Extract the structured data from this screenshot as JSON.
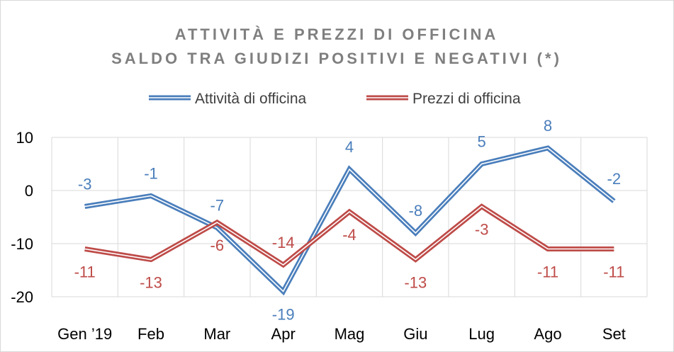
{
  "chart_data": {
    "type": "line",
    "title": [
      "ATTIVITÀ E PREZZI DI OFFICINA",
      "SALDO TRA GIUDIZI POSITIVI E NEGATIVI (*)"
    ],
    "categories": [
      "Gen ’19",
      "Feb",
      "Mar",
      "Apr",
      "Mag",
      "Giu",
      "Lug",
      "Ago",
      "Set"
    ],
    "series": [
      {
        "name": "Attività di officina",
        "color": "#4a7ebb",
        "values": [
          -3,
          -1,
          -7,
          -19,
          4,
          -8,
          5,
          8,
          -2
        ],
        "labels": [
          "-3",
          "-1",
          "-7",
          "-19",
          "4",
          "-8",
          "5",
          "8",
          "-2"
        ]
      },
      {
        "name": "Prezzi di officina",
        "color": "#be4b48",
        "values": [
          -11,
          -13,
          -6,
          -14,
          -4,
          -13,
          -3,
          -11,
          -11
        ],
        "labels": [
          "-11",
          "-13",
          "-6",
          "-14",
          "-4",
          "-13",
          "-3",
          "-11",
          "-11"
        ]
      }
    ],
    "yticks": [
      10,
      0,
      -10,
      -20
    ],
    "ytick_labels": [
      "10",
      "0",
      "-10",
      "-20"
    ],
    "ylim": [
      -20,
      10
    ],
    "grid": true,
    "legend": "top-center",
    "xlabel": "",
    "ylabel": ""
  }
}
